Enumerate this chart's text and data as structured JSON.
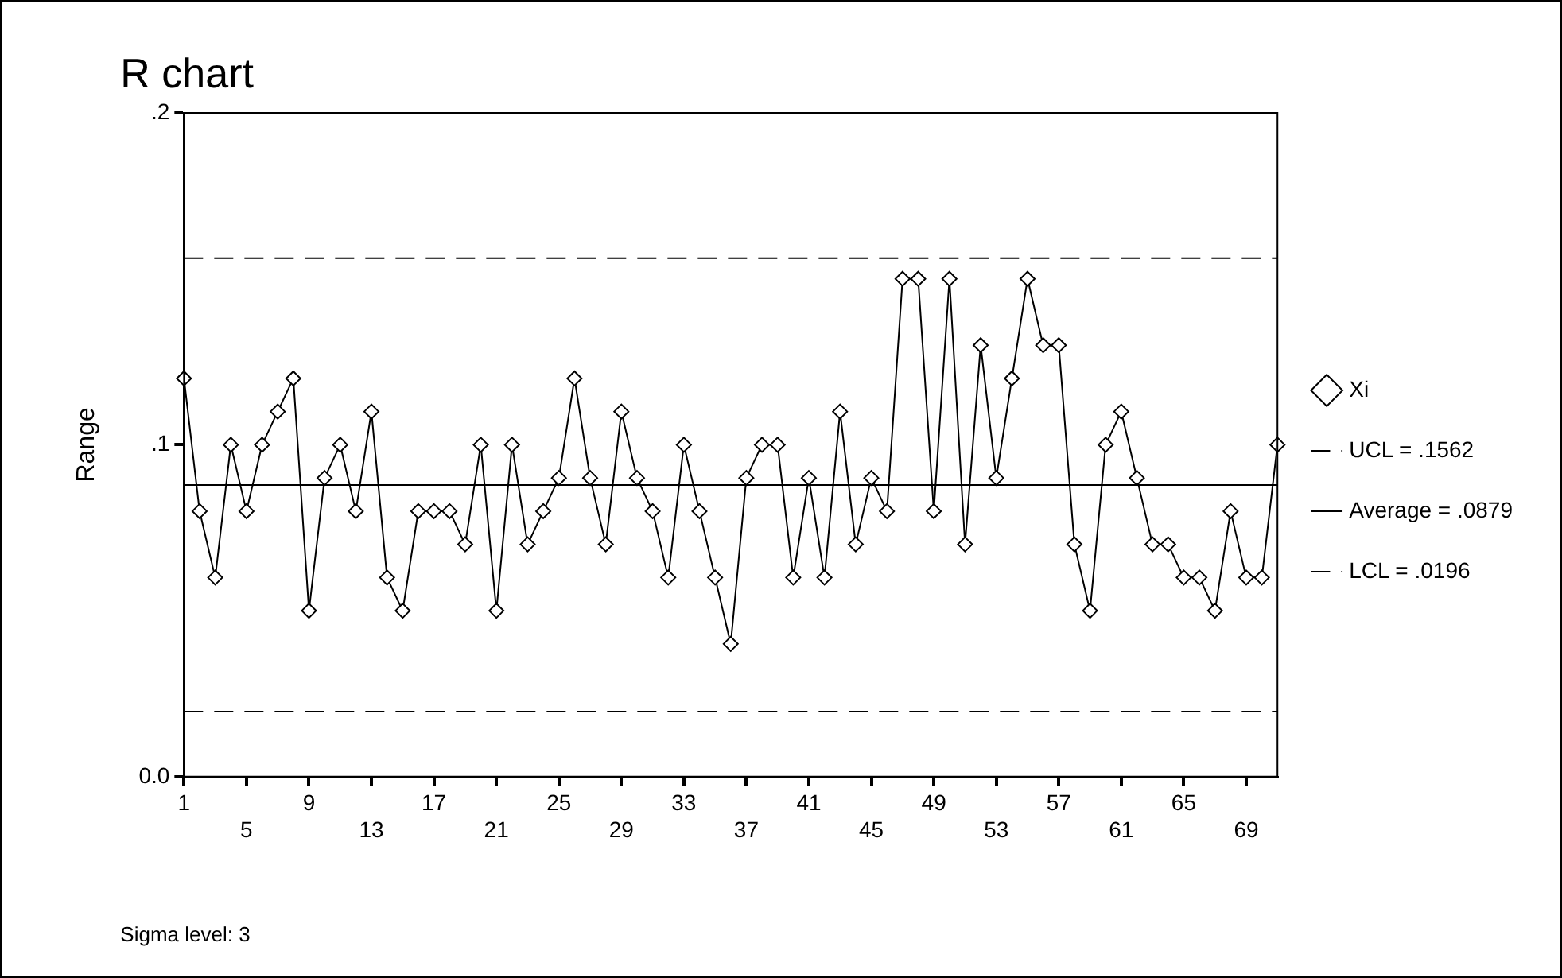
{
  "chart_data": {
    "type": "line",
    "title": "R chart",
    "ylabel": "Range",
    "categories": [
      "1",
      null,
      null,
      null,
      "5",
      null,
      null,
      null,
      "9",
      null,
      null,
      null,
      "13",
      null,
      null,
      null,
      "17",
      null,
      null,
      null,
      "21",
      null,
      null,
      null,
      "25",
      null,
      null,
      null,
      "29",
      null,
      null,
      null,
      "33",
      null,
      null,
      null,
      "37",
      null,
      null,
      null,
      "41",
      null,
      null,
      null,
      "45",
      null,
      null,
      null,
      "49",
      null,
      null,
      null,
      "53",
      null,
      null,
      null,
      "57",
      null,
      null,
      null,
      "61",
      null,
      null,
      null,
      "65",
      null,
      null,
      null,
      "69",
      null,
      null
    ],
    "series": [
      {
        "name": "Xi",
        "color": "#000000",
        "marker": "diamond",
        "line_style": "solid",
        "values": [
          0.12,
          0.08,
          0.06,
          0.1,
          0.08,
          0.1,
          0.11,
          0.12,
          0.05,
          0.09,
          0.1,
          0.08,
          0.11,
          0.06,
          0.05,
          0.08,
          0.08,
          0.08,
          0.07,
          0.1,
          0.05,
          0.1,
          0.07,
          0.08,
          0.09,
          0.12,
          0.09,
          0.07,
          0.11,
          0.09,
          0.08,
          0.06,
          0.1,
          0.08,
          0.06,
          0.04,
          0.09,
          0.1,
          0.1,
          0.06,
          0.09,
          0.06,
          0.11,
          0.07,
          0.09,
          0.08,
          0.15,
          0.15,
          0.08,
          0.15,
          0.07,
          0.13,
          0.09,
          0.12,
          0.15,
          0.13,
          0.13,
          0.07,
          0.05,
          0.1,
          0.11,
          0.09,
          0.07,
          0.07,
          0.06,
          0.06,
          0.05,
          0.08,
          0.06,
          0.06,
          0.1
        ]
      }
    ],
    "ref_lines": [
      {
        "axis": "y",
        "value": 0.1562,
        "label": "UCL = .1562",
        "color": "#000000",
        "line_style": "dashed"
      },
      {
        "axis": "y",
        "value": 0.0879,
        "label": "Average = .0879",
        "color": "#000000",
        "line_style": "solid"
      },
      {
        "axis": "y",
        "value": 0.0196,
        "label": "LCL = .0196",
        "color": "#000000",
        "line_style": "dashed"
      }
    ],
    "ylim": [
      0,
      0.2
    ],
    "yticks": [
      {
        "value": 0,
        "label": "0.0"
      },
      {
        "value": 0.1,
        "label": ".1"
      },
      {
        "value": 0.2,
        "label": ".2"
      }
    ],
    "grid": false,
    "legend": "right",
    "annotations": [
      "Sigma level: 3"
    ]
  }
}
